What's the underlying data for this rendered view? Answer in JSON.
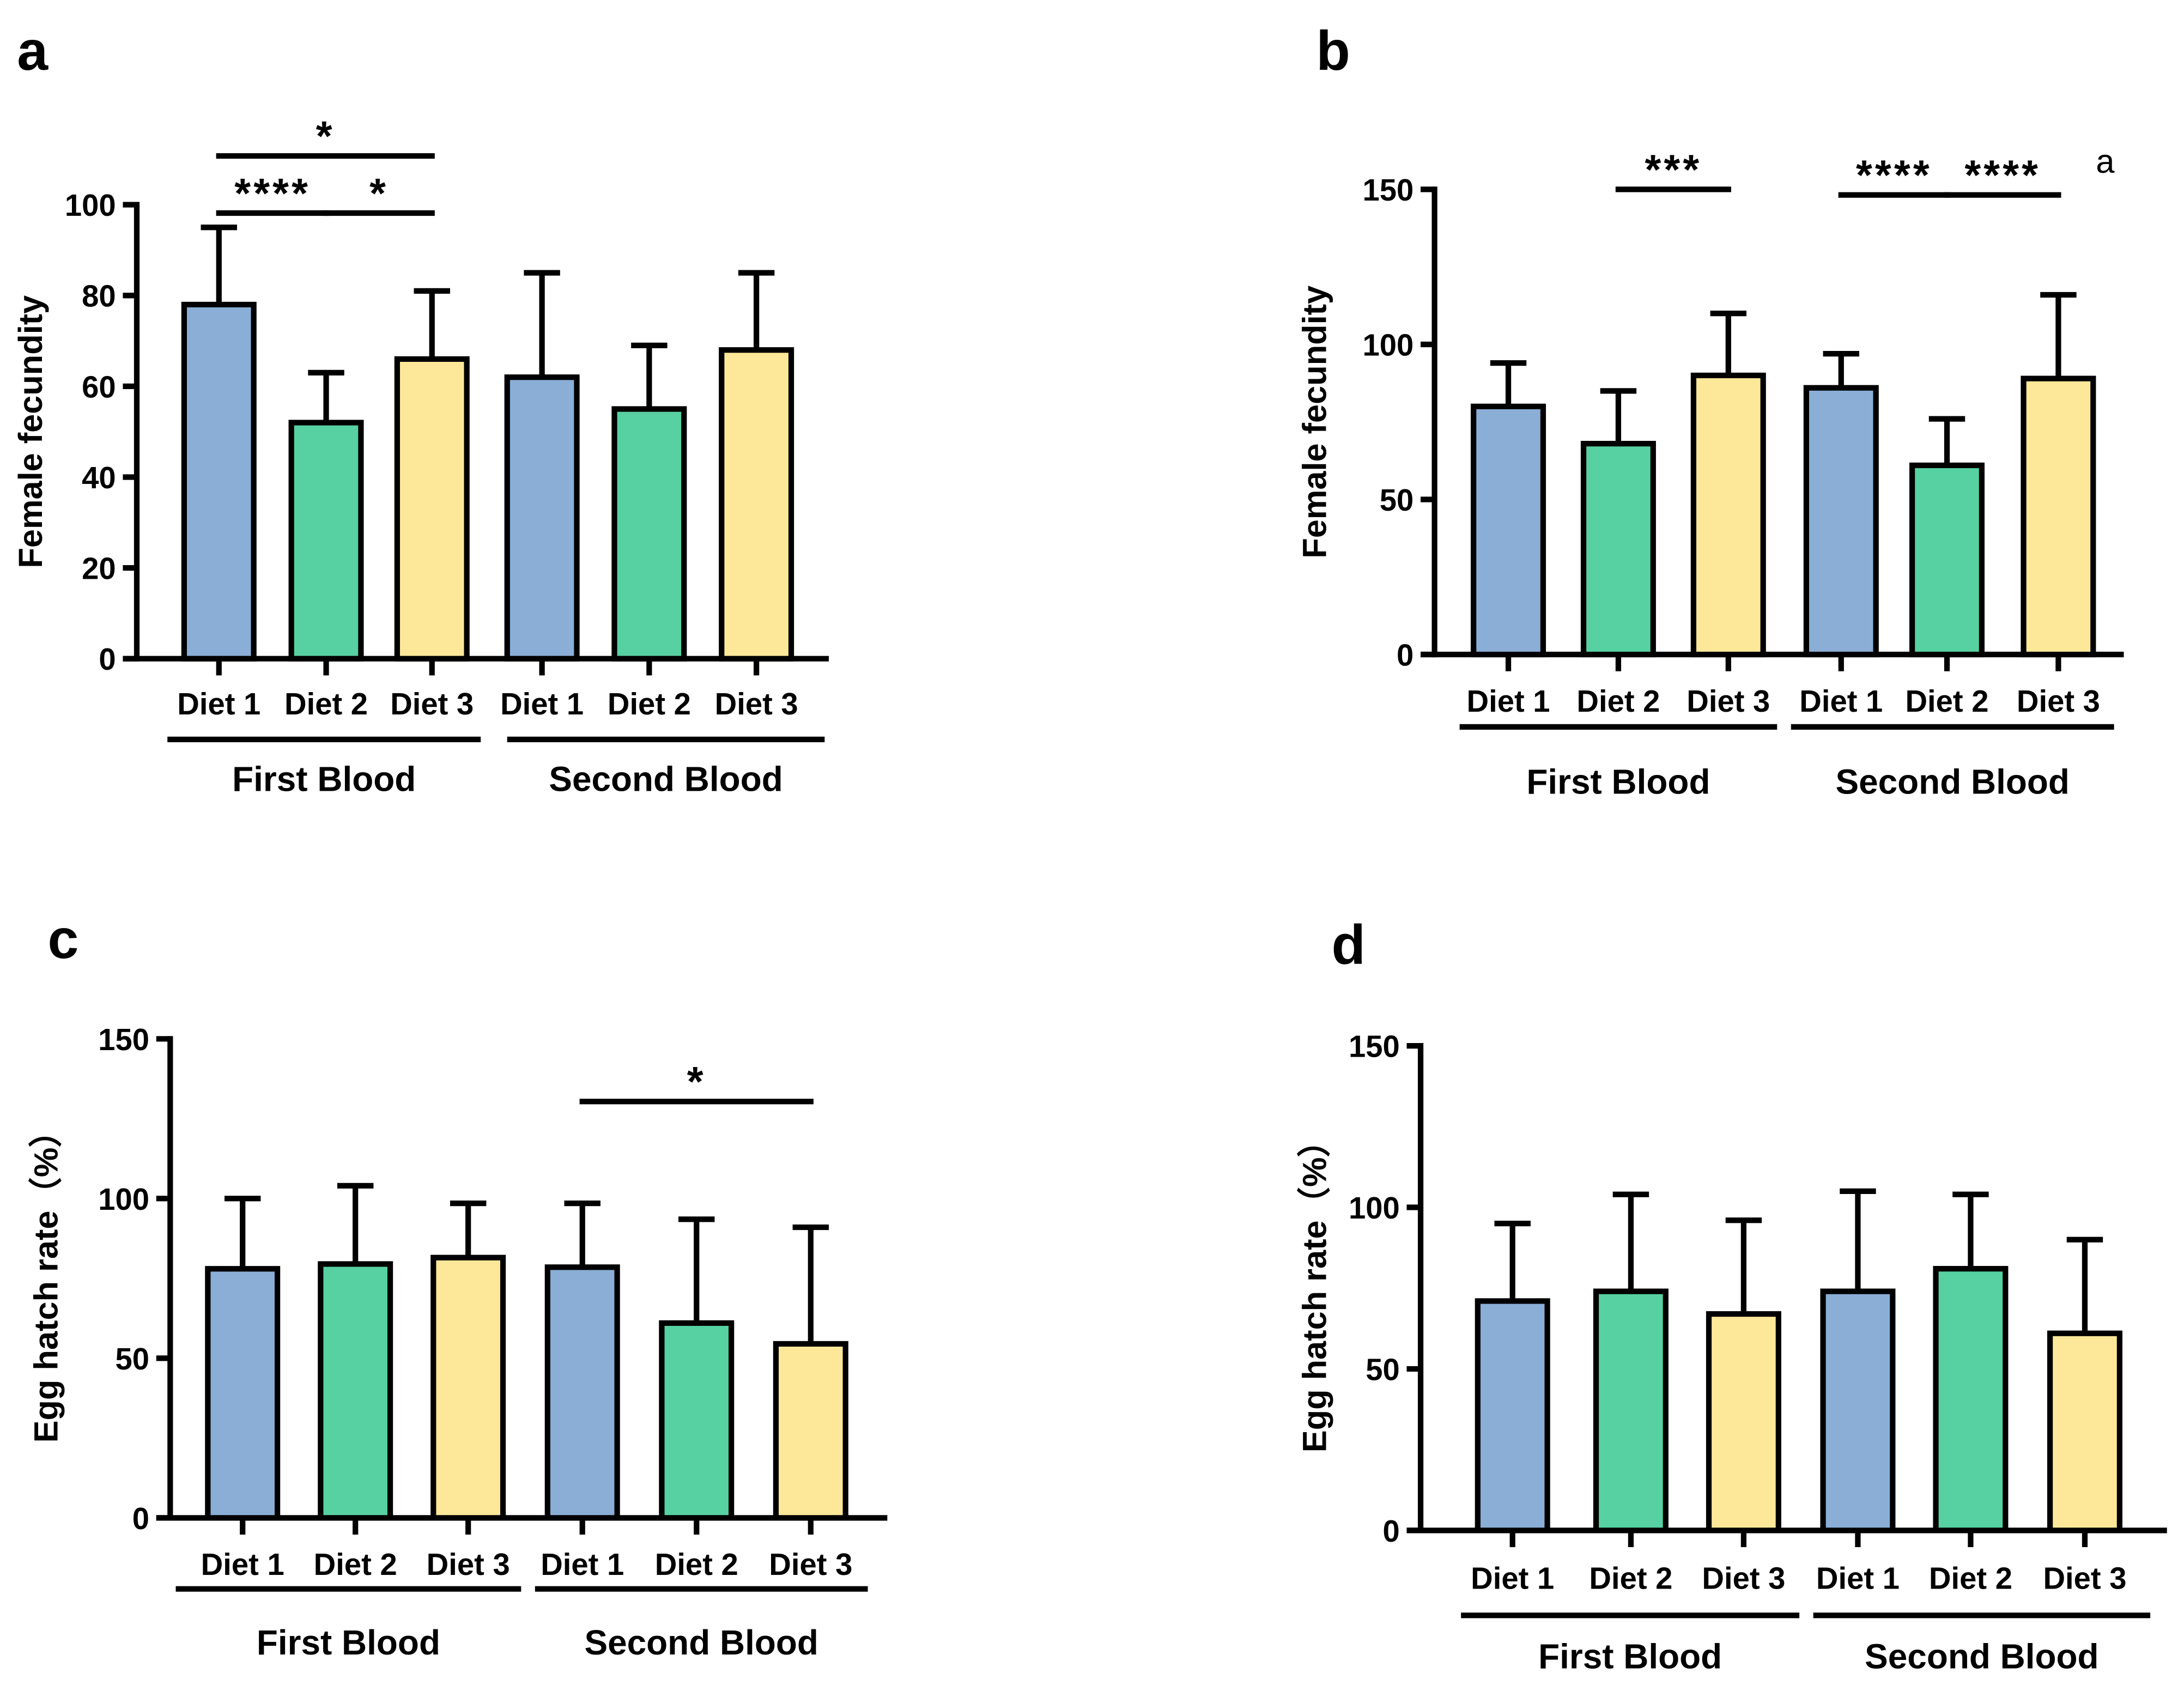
{
  "colors": {
    "diet1": "#8aaed6",
    "diet2": "#57d1a2",
    "diet3": "#fde899",
    "stroke": "#000000"
  },
  "chart_data": [
    {
      "panel": "a",
      "type": "bar",
      "ylabel": "Female fecundity",
      "ylim": [
        0,
        100
      ],
      "yticks": [
        0,
        20,
        40,
        60,
        80,
        100
      ],
      "categories": [
        "Diet 1",
        "Diet 2",
        "Diet 3",
        "Diet 1",
        "Diet 2",
        "Diet 3"
      ],
      "groups": [
        "First Blood",
        "Second Blood"
      ],
      "values": [
        78,
        52,
        66,
        62,
        55,
        68
      ],
      "error_upper": [
        95,
        63,
        81,
        85,
        69,
        85
      ],
      "comparisons": [
        {
          "from": 0,
          "to": 2,
          "label": "*"
        },
        {
          "from": 0,
          "to": 1,
          "label": "****"
        },
        {
          "from": 1,
          "to": 2,
          "label": "*"
        }
      ],
      "extra_annotation": ""
    },
    {
      "panel": "b",
      "type": "bar",
      "ylabel": "Female fecundity",
      "ylim": [
        0,
        150
      ],
      "yticks": [
        0,
        50,
        100,
        150
      ],
      "categories": [
        "Diet 1",
        "Diet 2",
        "Diet 3",
        "Diet 1",
        "Diet 2",
        "Diet 3"
      ],
      "groups": [
        "First Blood",
        "Second Blood"
      ],
      "values": [
        80,
        68,
        90,
        86,
        61,
        89
      ],
      "error_upper": [
        94,
        85,
        110,
        97,
        76,
        116
      ],
      "comparisons": [
        {
          "from": 1,
          "to": 2,
          "label": "***"
        },
        {
          "from": 3,
          "to": 4,
          "label": "****"
        },
        {
          "from": 4,
          "to": 5,
          "label": "****"
        }
      ],
      "extra_annotation": "a"
    },
    {
      "panel": "c",
      "type": "bar",
      "ylabel": "Egg hatch rate（%）",
      "ylim": [
        0,
        150
      ],
      "yticks": [
        0,
        50,
        100,
        150
      ],
      "categories": [
        "Diet 1",
        "Diet 2",
        "Diet 3",
        "Diet 1",
        "Diet 2",
        "Diet 3"
      ],
      "groups": [
        "First Blood",
        "Second Blood"
      ],
      "values": [
        78,
        79.5,
        81.5,
        78.5,
        61,
        54.5
      ],
      "error_upper": [
        100,
        104,
        98.5,
        98.5,
        93.5,
        91
      ],
      "comparisons": [
        {
          "from": 3,
          "to": 5,
          "label": "*"
        }
      ],
      "extra_annotation": ""
    },
    {
      "panel": "d",
      "type": "bar",
      "ylabel": "Egg hatch rate（%）",
      "ylim": [
        0,
        150
      ],
      "yticks": [
        0,
        50,
        100,
        150
      ],
      "categories": [
        "Diet 1",
        "Diet 2",
        "Diet 3",
        "Diet 1",
        "Diet 2",
        "Diet 3"
      ],
      "groups": [
        "First Blood",
        "Second Blood"
      ],
      "values": [
        71,
        74,
        67,
        74,
        81,
        61
      ],
      "error_upper": [
        95,
        104,
        96,
        105,
        104,
        90
      ],
      "comparisons": [],
      "extra_annotation": ""
    }
  ]
}
